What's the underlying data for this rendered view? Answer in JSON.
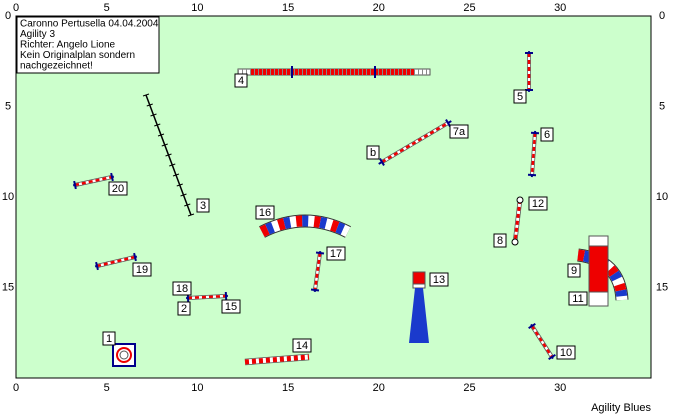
{
  "info": {
    "lines": [
      "Caronno Pertusella 04.04.2004",
      "Agility 3",
      "Richter: Angelo Lione",
      "Kein Originalplan sondern",
      "nachgezeichnet!"
    ]
  },
  "axes": {
    "x_ticks": [
      0,
      5,
      10,
      15,
      20,
      25,
      30
    ],
    "y_ticks": [
      0,
      5,
      10,
      15
    ]
  },
  "course": {
    "labels": [
      "1",
      "2",
      "3",
      "4",
      "5",
      "6",
      "7a",
      "8",
      "9",
      "10",
      "11",
      "12",
      "13",
      "14",
      "15",
      "16",
      "17",
      "18",
      "19",
      "20",
      "b"
    ]
  },
  "footer": "Agility Blues"
}
